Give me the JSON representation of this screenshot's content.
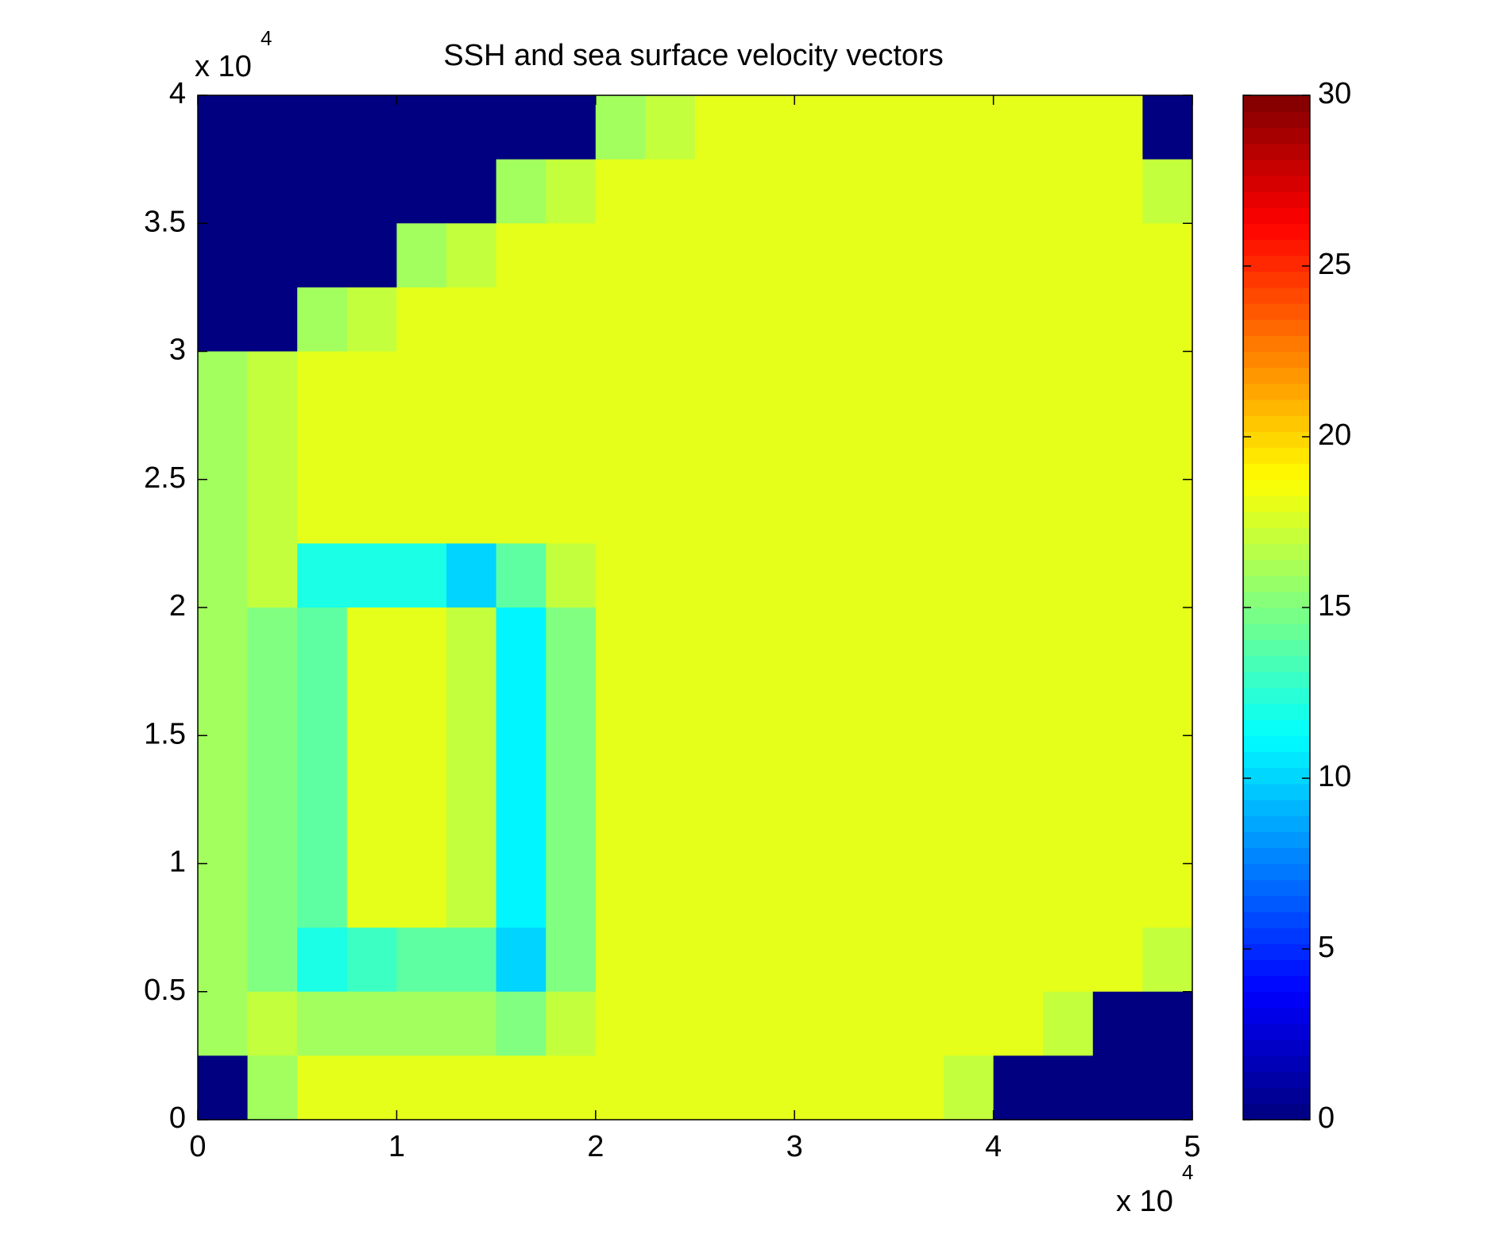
{
  "chart_data": {
    "type": "heatmap",
    "title": "SSH and sea surface velocity vectors",
    "xlim": [
      0,
      50000
    ],
    "ylim": [
      0,
      40000
    ],
    "xticks": [
      0,
      {
        "value": 10000,
        "label": "1"
      },
      {
        "value": 20000,
        "label": "2"
      },
      {
        "value": 30000,
        "label": "3"
      },
      {
        "value": 40000,
        "label": "4"
      },
      {
        "value": 50000,
        "label": "5"
      }
    ],
    "yticks": [
      0,
      {
        "value": 5000,
        "label": "0.5"
      },
      {
        "value": 10000,
        "label": "1"
      },
      {
        "value": 15000,
        "label": "1.5"
      },
      {
        "value": 20000,
        "label": "2"
      },
      {
        "value": 25000,
        "label": "2.5"
      },
      {
        "value": 30000,
        "label": "3"
      },
      {
        "value": 35000,
        "label": "3.5"
      },
      {
        "value": 40000,
        "label": "4"
      }
    ],
    "x_multiplier": {
      "base": "x 10",
      "exponent": "4"
    },
    "y_multiplier": {
      "base": "x 10",
      "exponent": "4"
    },
    "colormap": "jet",
    "clim": [
      0,
      30
    ],
    "colorbar_ticks": [
      0,
      5,
      10,
      15,
      20,
      25,
      30
    ],
    "z": [
      [
        0,
        0,
        0,
        0,
        0,
        0,
        0,
        0,
        16,
        17,
        18,
        18,
        18,
        18,
        18,
        18,
        18,
        18,
        18,
        0
      ],
      [
        0,
        0,
        0,
        0,
        0,
        0,
        16,
        17,
        18,
        18,
        18,
        18,
        18,
        18,
        18,
        18,
        18,
        18,
        18,
        17
      ],
      [
        0,
        0,
        0,
        0,
        16,
        17,
        18,
        18,
        18,
        18,
        18,
        18,
        18,
        18,
        18,
        18,
        18,
        18,
        18,
        18
      ],
      [
        0,
        0,
        16,
        17,
        18,
        18,
        18,
        18,
        18,
        18,
        18,
        18,
        18,
        18,
        18,
        18,
        18,
        18,
        18,
        18
      ],
      [
        16,
        17,
        18,
        18,
        18,
        18,
        18,
        18,
        18,
        18,
        18,
        18,
        18,
        18,
        18,
        18,
        18,
        18,
        18,
        18
      ],
      [
        16,
        17,
        18,
        18,
        18,
        18,
        18,
        18,
        18,
        18,
        18,
        18,
        18,
        18,
        18,
        18,
        18,
        18,
        18,
        18
      ],
      [
        16,
        17,
        18,
        18,
        18,
        18,
        18,
        18,
        18,
        18,
        18,
        18,
        18,
        18,
        18,
        18,
        18,
        18,
        18,
        18
      ],
      [
        16,
        17,
        12,
        12,
        12,
        10,
        14,
        17,
        18,
        18,
        18,
        18,
        18,
        18,
        18,
        18,
        18,
        18,
        18,
        18
      ],
      [
        16,
        15,
        14,
        18,
        18,
        17,
        11,
        15,
        18,
        18,
        18,
        18,
        18,
        18,
        18,
        18,
        18,
        18,
        18,
        18
      ],
      [
        16,
        15,
        14,
        18,
        18,
        17,
        11,
        15,
        18,
        18,
        18,
        18,
        18,
        18,
        18,
        18,
        18,
        18,
        18,
        18
      ],
      [
        16,
        15,
        14,
        18,
        18,
        17,
        11,
        15,
        18,
        18,
        18,
        18,
        18,
        18,
        18,
        18,
        18,
        18,
        18,
        18
      ],
      [
        16,
        15,
        14,
        18,
        18,
        17,
        11,
        15,
        18,
        18,
        18,
        18,
        18,
        18,
        18,
        18,
        18,
        18,
        18,
        18
      ],
      [
        16,
        15,
        14,
        18,
        18,
        17,
        11,
        15,
        18,
        18,
        18,
        18,
        18,
        18,
        18,
        18,
        18,
        18,
        18,
        18
      ],
      [
        16,
        15,
        12,
        13,
        14,
        14,
        10,
        15,
        18,
        18,
        18,
        18,
        18,
        18,
        18,
        18,
        18,
        18,
        18,
        17
      ],
      [
        16,
        17,
        16,
        16,
        16,
        16,
        15,
        17,
        18,
        18,
        18,
        18,
        18,
        18,
        18,
        18,
        18,
        17,
        0,
        0
      ],
      [
        0,
        16,
        18,
        18,
        18,
        18,
        18,
        18,
        18,
        18,
        18,
        18,
        18,
        18,
        18,
        17,
        0,
        0,
        0,
        0
      ]
    ]
  }
}
